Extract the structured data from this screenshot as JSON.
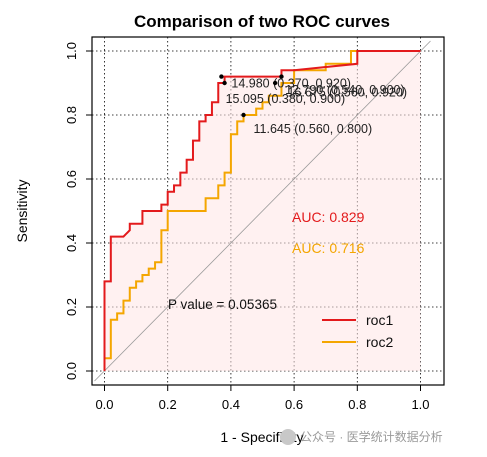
{
  "chart_data": {
    "type": "line",
    "title": "Comparison of two ROC curves",
    "xlabel": "1 - Specificity",
    "ylabel": "Sensitivity",
    "xlim": [
      0,
      1
    ],
    "ylim": [
      0,
      1
    ],
    "xticks": [
      "0.0",
      "0.2",
      "0.4",
      "0.6",
      "0.8",
      "1.0"
    ],
    "yticks": [
      "0.0",
      "0.2",
      "0.4",
      "0.6",
      "0.8",
      "1.0"
    ],
    "grid": true,
    "legend_position": "bottom-right",
    "series": [
      {
        "name": "roc1",
        "color": "#e31a1c",
        "x": [
          0.0,
          0.0,
          0.02,
          0.02,
          0.06,
          0.08,
          0.08,
          0.12,
          0.12,
          0.18,
          0.18,
          0.2,
          0.2,
          0.22,
          0.22,
          0.24,
          0.24,
          0.26,
          0.26,
          0.28,
          0.28,
          0.3,
          0.3,
          0.32,
          0.32,
          0.34,
          0.34,
          0.36,
          0.36,
          0.38,
          0.38,
          0.56,
          0.56,
          0.6,
          0.8,
          0.8,
          0.86,
          1.0
        ],
        "y": [
          0.0,
          0.28,
          0.28,
          0.42,
          0.42,
          0.44,
          0.46,
          0.46,
          0.5,
          0.5,
          0.52,
          0.52,
          0.56,
          0.56,
          0.58,
          0.58,
          0.62,
          0.62,
          0.66,
          0.66,
          0.72,
          0.72,
          0.78,
          0.78,
          0.8,
          0.8,
          0.84,
          0.84,
          0.9,
          0.9,
          0.92,
          0.92,
          0.94,
          0.94,
          0.96,
          1.0,
          1.0,
          1.0
        ]
      },
      {
        "name": "roc2",
        "color": "#f4a600",
        "x": [
          0.0,
          0.0,
          0.02,
          0.02,
          0.04,
          0.04,
          0.06,
          0.06,
          0.08,
          0.08,
          0.1,
          0.1,
          0.12,
          0.12,
          0.14,
          0.14,
          0.16,
          0.16,
          0.18,
          0.18,
          0.2,
          0.2,
          0.32,
          0.32,
          0.36,
          0.36,
          0.38,
          0.38,
          0.4,
          0.4,
          0.42,
          0.42,
          0.44,
          0.44,
          0.48,
          0.48,
          0.5,
          0.5,
          0.52,
          0.52,
          0.56,
          0.56,
          0.6,
          0.6,
          0.7,
          0.7,
          0.78,
          0.78,
          1.0
        ],
        "y": [
          0.0,
          0.04,
          0.04,
          0.16,
          0.16,
          0.18,
          0.18,
          0.22,
          0.22,
          0.26,
          0.26,
          0.28,
          0.28,
          0.3,
          0.3,
          0.32,
          0.32,
          0.34,
          0.34,
          0.44,
          0.44,
          0.5,
          0.5,
          0.54,
          0.54,
          0.58,
          0.58,
          0.62,
          0.62,
          0.74,
          0.74,
          0.78,
          0.78,
          0.8,
          0.8,
          0.82,
          0.82,
          0.84,
          0.84,
          0.86,
          0.86,
          0.9,
          0.9,
          0.94,
          0.94,
          0.96,
          0.96,
          1.0,
          1.0
        ]
      }
    ],
    "annotations": [
      {
        "label": "14.980 (0.370, 0.920)",
        "point": [
          0.37,
          0.92
        ],
        "series": "roc1"
      },
      {
        "label": "15.095 (0.380, 0.900)",
        "point": [
          0.38,
          0.9
        ],
        "series": "roc1"
      },
      {
        "label": "12.790 (0.540, 0.900)",
        "point": [
          0.54,
          0.9
        ],
        "series": "roc2"
      },
      {
        "label": "16.675 (0.560, 0.920)",
        "point": [
          0.56,
          0.92
        ],
        "series": "roc2"
      },
      {
        "label": "11.645 (0.560, 0.800)",
        "point": [
          0.44,
          0.8
        ],
        "series": "roc2"
      }
    ],
    "auc_labels": [
      {
        "text": "AUC: 0.829",
        "color": "#e31a1c"
      },
      {
        "text": "AUC: 0.716",
        "color": "#f4a600"
      }
    ],
    "p_value_text": "P value = 0.05365"
  },
  "watermark": "公众号 · 医学统计数据分析"
}
